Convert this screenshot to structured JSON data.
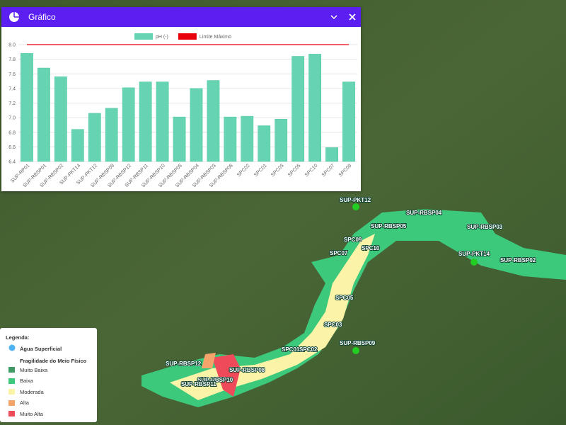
{
  "panel": {
    "title": "Gráfico"
  },
  "chart_data": {
    "type": "bar",
    "categories": [
      "SUP-RP01",
      "SUP-RBSP01",
      "SUP-RBSP02",
      "SUP-PKT14",
      "SUP-PKT12",
      "SUP-RBSP09",
      "SUP-RBSP12",
      "SUP-RBSP11",
      "SUP-RBSP10",
      "SUP-RBSP05",
      "SUP-RBSP04",
      "SUP-RBSP03",
      "SUP-RBSP08",
      "SPC02",
      "SPC01",
      "SPC03",
      "SPC05",
      "SPC10",
      "SPC07",
      "SPC09"
    ],
    "series": [
      {
        "name": "pH (-)",
        "color": "#66d4b2",
        "values": [
          7.88,
          7.68,
          7.56,
          6.84,
          7.06,
          7.13,
          7.41,
          7.49,
          7.49,
          7.01,
          7.4,
          7.51,
          7.01,
          7.02,
          6.89,
          6.98,
          7.84,
          7.87,
          6.59,
          7.49
        ]
      },
      {
        "name": "Limite Máximo",
        "color": "#e8000b",
        "type": "line",
        "values": [
          8,
          8,
          8,
          8,
          8,
          8,
          8,
          8,
          8,
          8,
          8,
          8,
          8,
          8,
          8,
          8,
          8,
          8,
          8,
          8
        ]
      }
    ],
    "ylim": [
      6.4,
      8
    ],
    "yticks": [
      6.4,
      6.6,
      6.8,
      {
        "value": 7,
        "label": "7.0"
      },
      7.2,
      7.4,
      7.6,
      7.8,
      {
        "value": 8,
        "label": "8.0"
      }
    ],
    "grid": true,
    "legend": "top"
  },
  "legend": {
    "title": "Legenda:",
    "water": "Água Superficial",
    "fragility_title": "Fragilidade do Meio Físico",
    "classes": [
      {
        "label": "Muito Baixa",
        "color": "#3f9a66"
      },
      {
        "label": "Baixa",
        "color": "#3dc97c"
      },
      {
        "label": "Moderada",
        "color": "#fbf3a8"
      },
      {
        "label": "Alta",
        "color": "#f4a46a"
      },
      {
        "label": "Muito Alta",
        "color": "#ef4a5a"
      }
    ]
  },
  "map_labels": [
    "SUP-PKT12",
    "SUP-RBSP04",
    "SUP-RBSP05",
    "SUP-RBSP03",
    "SPC09",
    "SPC10",
    "SPC07",
    "SUP-PKT14",
    "SUP-RBSP02",
    "SPC05",
    "SPC03",
    "SUP-RBSP09",
    "SPC01",
    "SPC02",
    "SUP-RBSP12",
    "SUP-RBSP08",
    "SUP-RBSP10",
    "SUP-RBSP11"
  ]
}
